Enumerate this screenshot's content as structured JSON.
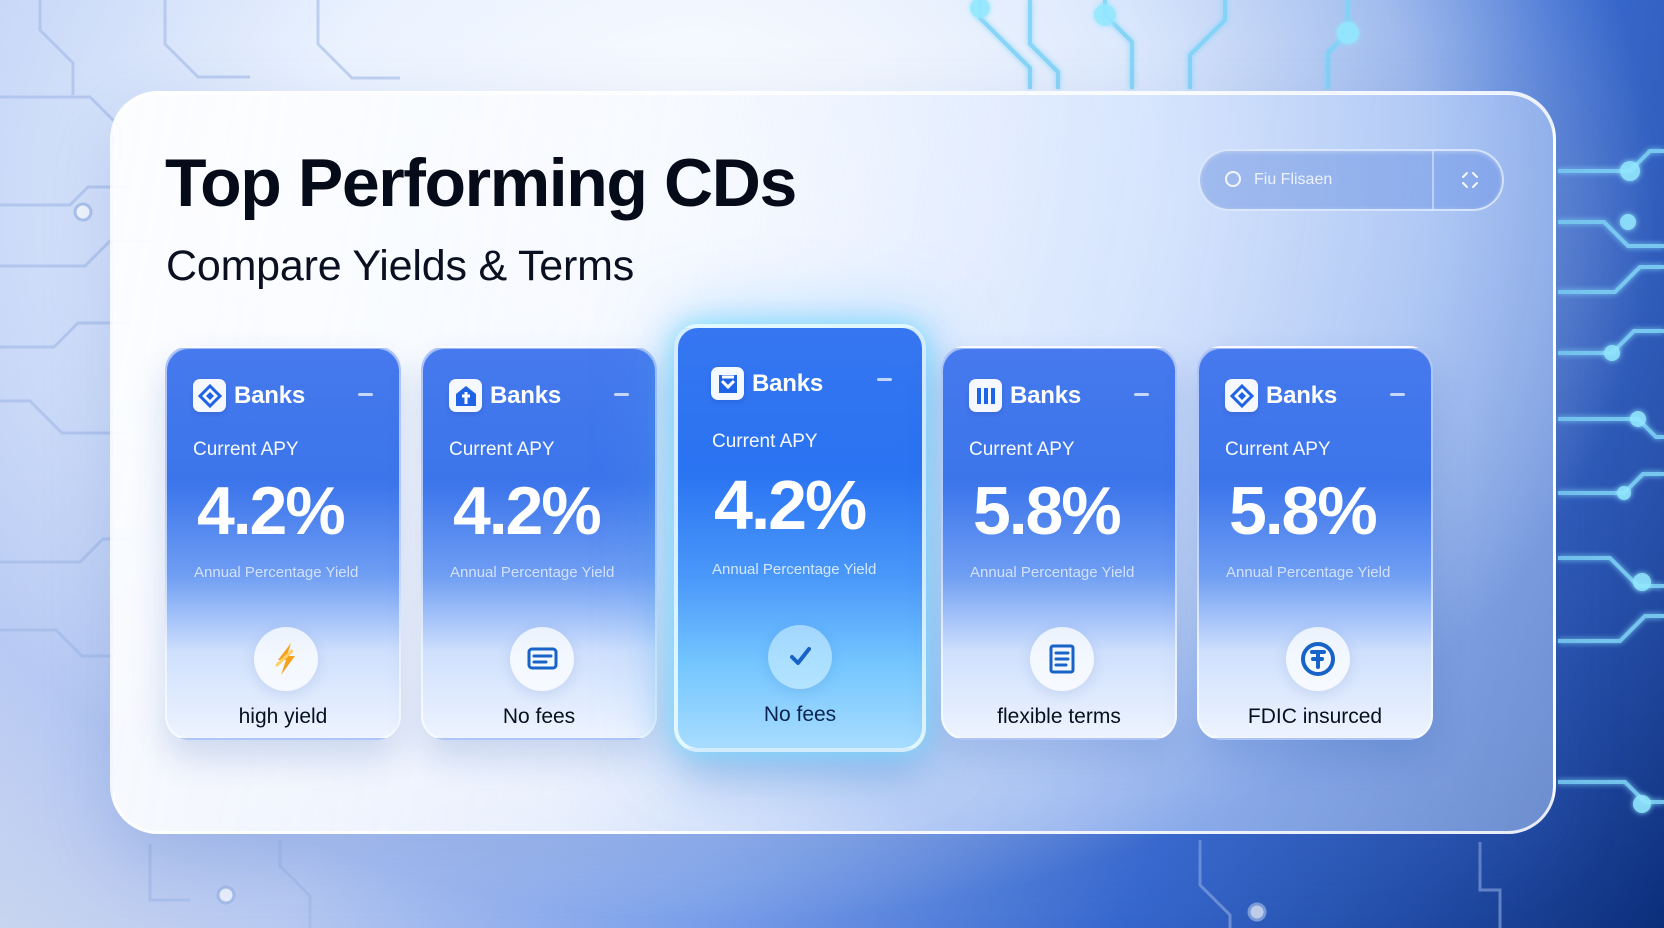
{
  "header": {
    "title": "Top Performing CDs",
    "subtitle": "Compare Yields & Terms"
  },
  "search": {
    "placeholder": "Fiu Flisaen",
    "value": ""
  },
  "cards": [
    {
      "bank_name": "Banks",
      "logo_icon": "bank-diamond-logo",
      "apy_label": "Current APY",
      "apy_value": "4.2%",
      "apy_caption": "Annual Percentage Yield",
      "feature_icon": "lightning-icon",
      "feature_label": "high yield"
    },
    {
      "bank_name": "Banks",
      "logo_icon": "bank-house-logo",
      "apy_label": "Current APY",
      "apy_value": "4.2%",
      "apy_caption": "Annual Percentage Yield",
      "feature_icon": "no-fees-icon",
      "feature_label": "No fees"
    },
    {
      "bank_name": "Banks",
      "logo_icon": "bank-wallet-logo",
      "apy_label": "Current APY",
      "apy_value": "4.2%",
      "apy_caption": "Annual Percentage Yield",
      "feature_icon": "checkmark-icon",
      "feature_label": "No fees"
    },
    {
      "bank_name": "Banks",
      "logo_icon": "bank-pillars-logo",
      "apy_label": "Current APY",
      "apy_value": "5.8%",
      "apy_caption": "Annual Percentage Yield",
      "feature_icon": "document-list-icon",
      "feature_label": "flexible terms"
    },
    {
      "bank_name": "Banks",
      "logo_icon": "bank-diamond-logo",
      "apy_label": "Current APY",
      "apy_value": "5.8%",
      "apy_caption": "Annual Percentage Yield",
      "feature_icon": "fdic-badge-icon",
      "feature_label": "FDIC insurced"
    }
  ],
  "colors": {
    "primary_blue": "#2d67eb",
    "featured_glow": "#74c6ff",
    "dark_text": "#050b18",
    "feature_accent": "#1763c7",
    "yield_accent": "#f5a11c"
  }
}
